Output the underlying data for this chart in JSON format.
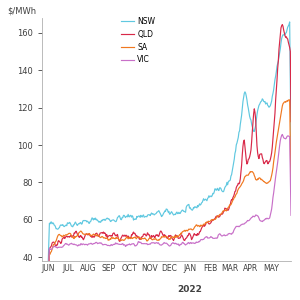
{
  "title_ylabel": "$/MWh",
  "xlabel": "2022",
  "ylim": [
    38,
    168
  ],
  "yticks": [
    40,
    60,
    80,
    100,
    120,
    140,
    160
  ],
  "months": [
    "JUN",
    "JUL",
    "AUG",
    "SEP",
    "OCT",
    "NOV",
    "DEC",
    "JAN",
    "FEB",
    "MAR",
    "APR",
    "MAY"
  ],
  "legend": [
    "NSW",
    "QLD",
    "SA",
    "VIC"
  ],
  "colors": {
    "NSW": "#60c8e0",
    "QLD": "#d82848",
    "SA": "#f07820",
    "VIC": "#c870c8"
  },
  "background_color": "#ffffff",
  "spine_color": "#b0b0b0",
  "tick_color": "#808080"
}
